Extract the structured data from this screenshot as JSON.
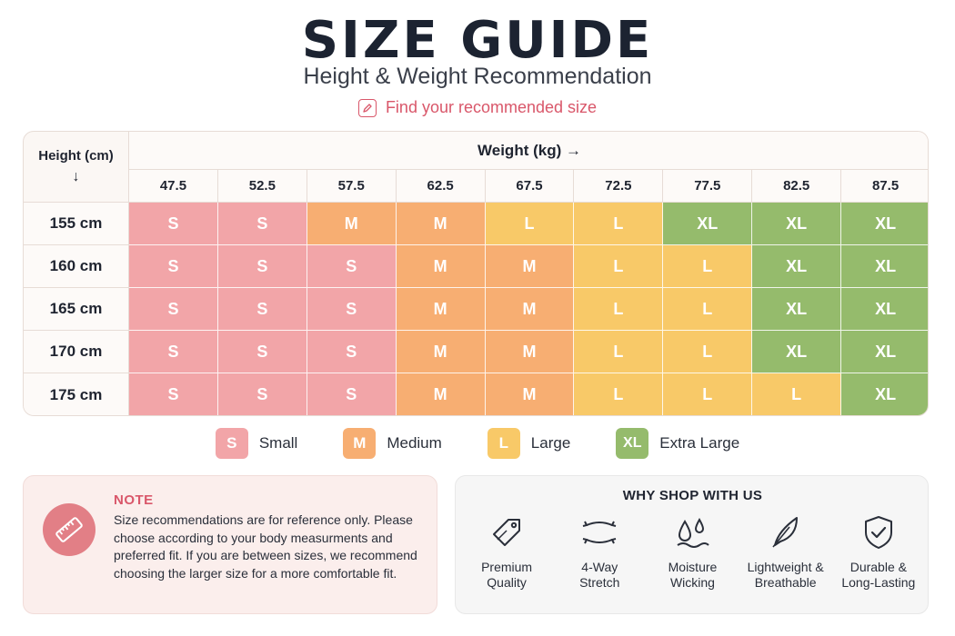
{
  "header": {
    "title": "SIZE GUIDE",
    "subtitle": "Height & Weight Recommendation",
    "find_label": "Find your recommended size"
  },
  "table": {
    "height_header": "Height (cm)",
    "height_arrow": "↓",
    "weight_header": "Weight (kg) →",
    "weights": [
      "47.5",
      "52.5",
      "57.5",
      "62.5",
      "67.5",
      "72.5",
      "77.5",
      "82.5",
      "87.5"
    ],
    "rows": [
      {
        "height": "155 cm",
        "sizes": [
          "S",
          "S",
          "M",
          "M",
          "L",
          "L",
          "XL",
          "XL",
          "XL"
        ]
      },
      {
        "height": "160 cm",
        "sizes": [
          "S",
          "S",
          "S",
          "M",
          "M",
          "L",
          "L",
          "XL",
          "XL"
        ]
      },
      {
        "height": "165 cm",
        "sizes": [
          "S",
          "S",
          "S",
          "M",
          "M",
          "L",
          "L",
          "XL",
          "XL"
        ]
      },
      {
        "height": "170 cm",
        "sizes": [
          "S",
          "S",
          "S",
          "M",
          "M",
          "L",
          "L",
          "XL",
          "XL"
        ]
      },
      {
        "height": "175 cm",
        "sizes": [
          "S",
          "S",
          "S",
          "M",
          "M",
          "L",
          "L",
          "L",
          "XL"
        ]
      }
    ]
  },
  "colors": {
    "S": "#f2a5a8",
    "M": "#f7ae72",
    "L": "#f8c968",
    "XL": "#95bb6c",
    "accent": "#d9576a"
  },
  "legend": [
    {
      "code": "S",
      "label": "Small"
    },
    {
      "code": "M",
      "label": "Medium"
    },
    {
      "code": "L",
      "label": "Large"
    },
    {
      "code": "XL",
      "label": "Extra Large"
    }
  ],
  "note": {
    "icon": "ruler-icon",
    "title": "NOTE",
    "body": "Size recommendations are for reference only. Please choose according to your body measurments and preferred fit. If you are between sizes, we recommend choosing the larger size for a more comfortable fit."
  },
  "why_shop": {
    "title": "WHY SHOP WITH US",
    "features": [
      {
        "icon": "price-tag-icon",
        "label": "Premium\nQuality"
      },
      {
        "icon": "stretch-arrows-icon",
        "label": "4-Way\nStretch"
      },
      {
        "icon": "water-drops-icon",
        "label": "Moisture\nWicking"
      },
      {
        "icon": "feather-icon",
        "label": "Lightweight &\nBreathable"
      },
      {
        "icon": "shield-check-icon",
        "label": "Durable &\nLong-Lasting"
      }
    ]
  }
}
